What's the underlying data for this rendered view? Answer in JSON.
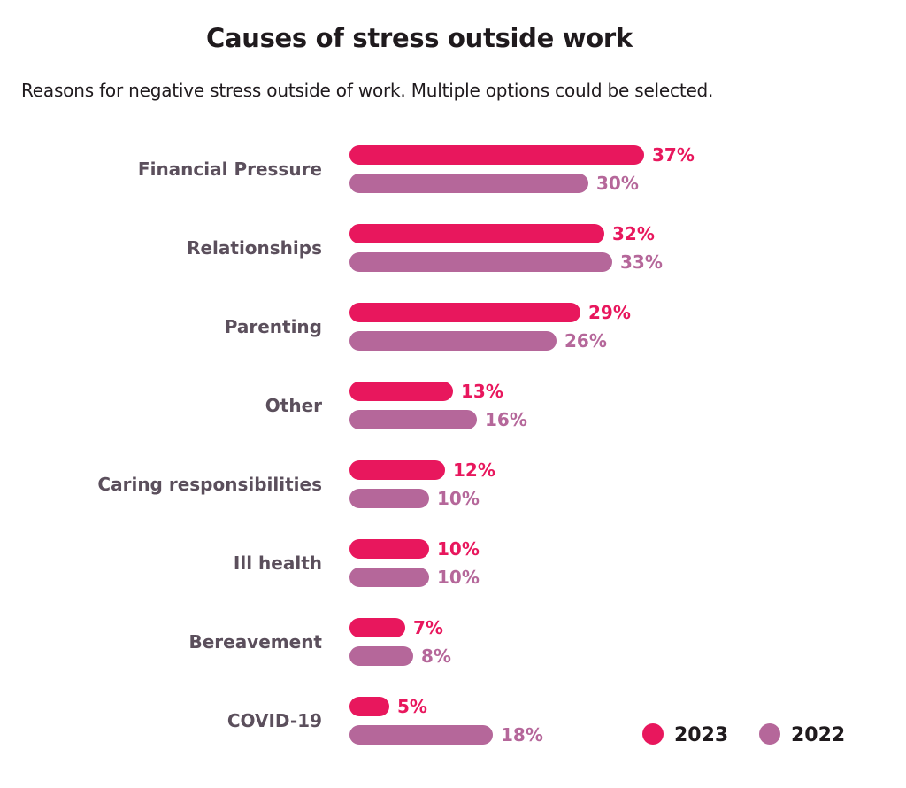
{
  "chart_data": {
    "type": "bar",
    "orientation": "horizontal",
    "title": "Causes of stress outside work",
    "subtitle": "Reasons for negative stress outside of work. Multiple options could be selected.",
    "categories": [
      "Financial Pressure",
      "Relationships",
      "Parenting",
      "Other",
      "Caring responsibilities",
      "Ill health",
      "Bereavement",
      "COVID-19"
    ],
    "series": [
      {
        "name": "2023",
        "color": "#e8175d",
        "values": [
          37,
          32,
          29,
          13,
          12,
          10,
          7,
          5
        ],
        "labels": [
          "37%",
          "32%",
          "29%",
          "13%",
          "12%",
          "10%",
          "7%",
          "5%"
        ]
      },
      {
        "name": "2022",
        "color": "#b5679a",
        "values": [
          30,
          33,
          26,
          16,
          10,
          10,
          8,
          18
        ],
        "labels": [
          "30%",
          "33%",
          "26%",
          "16%",
          "10%",
          "10%",
          "8%",
          "18%"
        ]
      }
    ],
    "value_unit": "%",
    "grid": false,
    "legend_position": "bottom-right"
  }
}
